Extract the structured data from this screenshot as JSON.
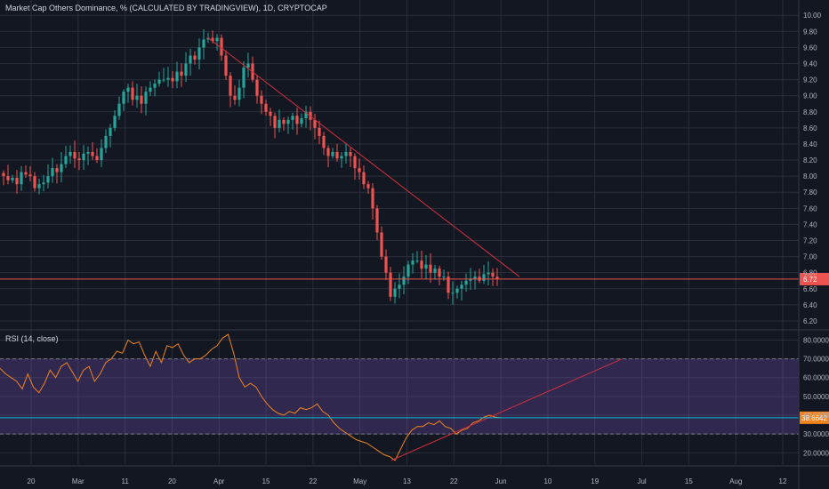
{
  "chart_title": "Market Cap Others Dominance, % (CALCULATED BY TRADINGVIEW), 1D, CRYPTOCAP",
  "colors": {
    "background": "#131722",
    "grid": "#2a2e39",
    "up": "#26a69a",
    "down": "#ef5350",
    "trendline": "#d32f3c",
    "rsi_line": "#f0841e",
    "rsi_band": "#7e57c2",
    "rsi_level_line": "#00bcd4",
    "price_line": "#ef5350"
  },
  "chart_data": [
    {
      "type": "candlestick",
      "title": "Market Cap Others Dominance, % (CALCULATED BY TRADINGVIEW), 1D, CRYPTOCAP",
      "yticks": [
        "6.20",
        "6.40",
        "6.60",
        "6.80",
        "7.00",
        "7.20",
        "7.40",
        "7.60",
        "7.80",
        "8.00",
        "8.20",
        "8.40",
        "8.60",
        "8.80",
        "9.00",
        "9.20",
        "9.40",
        "9.60",
        "9.80",
        "10.00"
      ],
      "ylim": [
        6.1,
        10.08
      ],
      "current_value": 6.72,
      "current_value_label": "6.72",
      "close_path": [
        8.0,
        7.95,
        7.98,
        7.9,
        8.05,
        8.02,
        8.0,
        7.85,
        7.9,
        7.92,
        8.0,
        8.1,
        8.05,
        8.15,
        8.25,
        8.3,
        8.22,
        8.2,
        8.28,
        8.3,
        8.25,
        8.2,
        8.35,
        8.5,
        8.6,
        8.75,
        8.9,
        9.05,
        9.1,
        8.95,
        9.0,
        8.9,
        9.05,
        9.1,
        9.15,
        9.2,
        9.2,
        9.22,
        9.18,
        9.3,
        9.25,
        9.4,
        9.5,
        9.45,
        9.6,
        9.7,
        9.72,
        9.68,
        9.72,
        9.5,
        9.25,
        9.0,
        8.95,
        9.1,
        9.35,
        9.4,
        9.2,
        9.0,
        8.9,
        8.8,
        8.75,
        8.6,
        8.7,
        8.65,
        8.7,
        8.75,
        8.65,
        8.72,
        8.8,
        8.7,
        8.6,
        8.5,
        8.35,
        8.25,
        8.3,
        8.22,
        8.25,
        8.3,
        8.25,
        8.1,
        8.05,
        7.9,
        7.85,
        7.6,
        7.3,
        7.0,
        6.8,
        6.5,
        6.6,
        6.65,
        6.75,
        6.9,
        6.95,
        6.95,
        6.85,
        6.9,
        6.8,
        6.85,
        6.75,
        6.75,
        6.55,
        6.55,
        6.6,
        6.65,
        6.7,
        6.72,
        6.75,
        6.7,
        6.78,
        6.8,
        6.75,
        6.72
      ],
      "xticks": [
        "20",
        "Mar",
        "11",
        "20",
        "Apr",
        "15",
        "22",
        "May",
        "13",
        "22",
        "Jun",
        "10",
        "19",
        "Jul",
        "15",
        "Aug",
        "12"
      ],
      "trendline": {
        "from": [
          46,
          9.72
        ],
        "to": [
          114,
          6.8
        ]
      },
      "hline": 6.72
    },
    {
      "type": "line",
      "title": "RSI (14, close)",
      "yticks": [
        "20.0000",
        "30.0000",
        "40.0000",
        "50.0000",
        "60.0000",
        "70.0000",
        "80.0000"
      ],
      "ylim": [
        14,
        84
      ],
      "overbought": 70,
      "oversold": 30,
      "current_value": 38.6642,
      "current_value_label": "38.6642",
      "values": [
        65,
        62,
        60,
        58,
        54,
        62,
        55,
        52,
        57,
        64,
        60,
        66,
        68,
        63,
        58,
        64,
        66,
        58,
        62,
        68,
        70,
        74,
        73,
        80,
        78,
        79,
        72,
        66,
        74,
        68,
        77,
        76,
        78,
        72,
        68,
        70,
        70,
        72,
        75,
        77,
        81,
        83,
        73,
        60,
        55,
        57,
        55,
        50,
        46,
        43,
        41,
        40,
        42,
        41,
        44,
        43,
        44,
        46,
        42,
        40,
        36,
        33,
        31,
        29,
        27,
        26,
        25,
        23,
        21,
        19,
        18,
        16,
        22,
        28,
        32,
        34,
        34,
        36,
        35,
        37,
        34,
        33,
        30,
        32,
        33,
        36,
        37,
        39,
        40,
        39,
        38.66
      ],
      "trendline": {
        "from": [
          0.49,
          16
        ],
        "to": [
          0.74,
          70
        ]
      }
    }
  ]
}
